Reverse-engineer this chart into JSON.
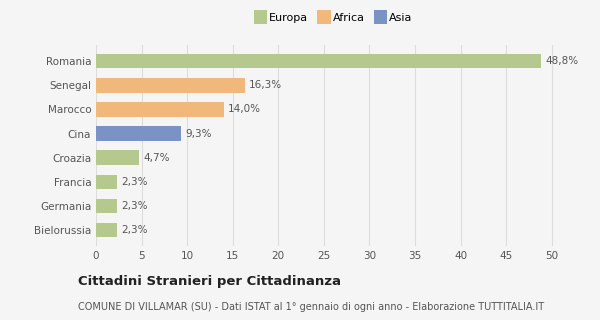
{
  "categories": [
    "Romania",
    "Senegal",
    "Marocco",
    "Cina",
    "Croazia",
    "Francia",
    "Germania",
    "Bielorussia"
  ],
  "values": [
    48.8,
    16.3,
    14.0,
    9.3,
    4.7,
    2.3,
    2.3,
    2.3
  ],
  "labels": [
    "48,8%",
    "16,3%",
    "14,0%",
    "9,3%",
    "4,7%",
    "2,3%",
    "2,3%",
    "2,3%"
  ],
  "colors": [
    "#b5c98e",
    "#f0b87a",
    "#f0b87a",
    "#7b93c4",
    "#b5c98e",
    "#b5c98e",
    "#b5c98e",
    "#b5c98e"
  ],
  "legend_labels": [
    "Europa",
    "Africa",
    "Asia"
  ],
  "legend_colors": [
    "#b5c98e",
    "#f0b87a",
    "#7b93c4"
  ],
  "xlim": [
    0,
    52
  ],
  "xticks": [
    0,
    5,
    10,
    15,
    20,
    25,
    30,
    35,
    40,
    45,
    50
  ],
  "title_bold": "Cittadini Stranieri per Cittadinanza",
  "subtitle": "COMUNE DI VILLAMAR (SU) - Dati ISTAT al 1° gennaio di ogni anno - Elaborazione TUTTITALIA.IT",
  "background_color": "#f5f5f5",
  "plot_bg_color": "#f5f5f5",
  "grid_color": "#dddddd",
  "bar_height": 0.6,
  "label_fontsize": 7.5,
  "tick_fontsize": 7.5,
  "title_fontsize": 9.5,
  "subtitle_fontsize": 7.0
}
